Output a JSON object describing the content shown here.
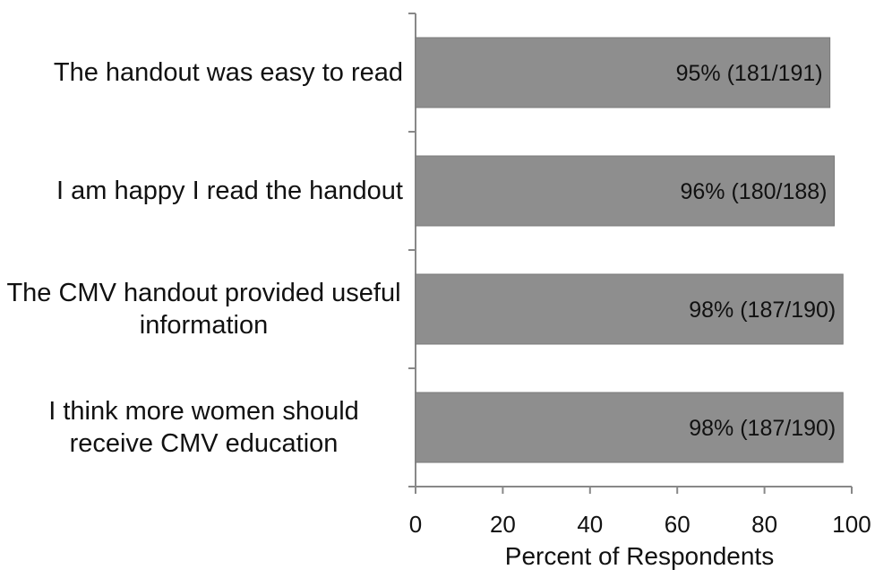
{
  "chart_data": {
    "type": "bar",
    "orientation": "horizontal",
    "categories": [
      "The handout was easy to read",
      "I am happy I read the handout",
      "The CMV handout provided useful information",
      "I think more women should receive CMV education"
    ],
    "values": [
      95,
      96,
      98,
      98
    ],
    "value_labels": [
      "95% (181/191)",
      "96% (180/188)",
      "98% (187/190)",
      "98% (187/190)"
    ],
    "color": "#8e8e8e",
    "xlim": [
      0,
      100
    ],
    "xticks": [
      0,
      20,
      40,
      60,
      80,
      100
    ],
    "xlabel": "Percent of Respondents",
    "grid": false
  }
}
